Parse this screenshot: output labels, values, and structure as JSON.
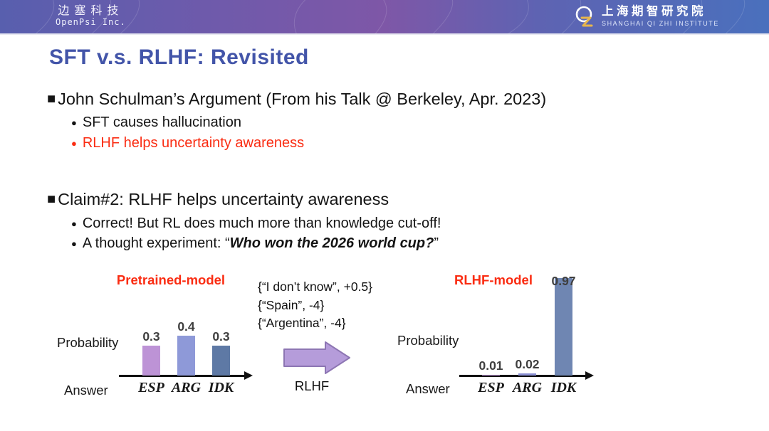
{
  "header": {
    "left": {
      "company_cn": "边塞科技",
      "company_en": "OpenPsi Inc."
    },
    "right": {
      "institute_cn": "上海期智研究院",
      "institute_en": "SHANGHAI QI ZHI INSTITUTE"
    }
  },
  "title": "SFT v.s. RLHF: Revisited",
  "icons": {
    "square_bullet": "■",
    "dot_bullet": "●"
  },
  "sections": [
    {
      "heading": "John Schulman’s Argument (From his Talk @ Berkeley, Apr. 2023)",
      "items": [
        {
          "text": "SFT causes hallucination"
        },
        {
          "text": "RLHF helps uncertainty awareness"
        }
      ]
    },
    {
      "heading": "Claim#2: RLHF helps uncertainty awareness",
      "items": [
        {
          "text": "Correct! But RL does much more than knowledge cut-off!"
        },
        {
          "prefix": "A thought experiment: “",
          "emphasis": "Who won the 2026 world cup?",
          "suffix": "”"
        }
      ]
    }
  ],
  "reward_block": {
    "lines": [
      "{“I don’t know”, +0.5}",
      "{“Spain”, -4}",
      "{“Argentina”, -4}"
    ]
  },
  "arrow_label": "RLHF",
  "chart_data": [
    {
      "type": "bar",
      "title": "Pretrained-model",
      "categories": [
        "ESP",
        "ARG",
        "IDK"
      ],
      "values": [
        0.3,
        0.4,
        0.3
      ],
      "bar_colors": [
        "#bd93d6",
        "#8e99d8",
        "#5e79a5"
      ],
      "xlabel": "Answer",
      "ylabel": "Probability",
      "ylim": [
        0,
        1
      ],
      "grid": false,
      "legend": "none"
    },
    {
      "type": "bar",
      "title": "RLHF-model",
      "categories": [
        "ESP",
        "ARG",
        "IDK"
      ],
      "values": [
        0.01,
        0.02,
        0.97
      ],
      "bar_colors": [
        "#bd93d6",
        "#8b90d4",
        "#6f86b2"
      ],
      "xlabel": "Answer",
      "ylabel": "Probability",
      "ylim": [
        0,
        1
      ],
      "grid": false,
      "legend": "none"
    }
  ],
  "colors": {
    "title_blue": "#4355a9",
    "accent_red": "#fa2c12",
    "header_gradient_left": "#585fae",
    "header_gradient_mid": "#7e57a7",
    "header_gradient_right": "#4a70bd",
    "value_label_gray": "#3f3f3f",
    "arrow_fill": "#b59cda",
    "arrow_stroke": "#8d76b3"
  }
}
